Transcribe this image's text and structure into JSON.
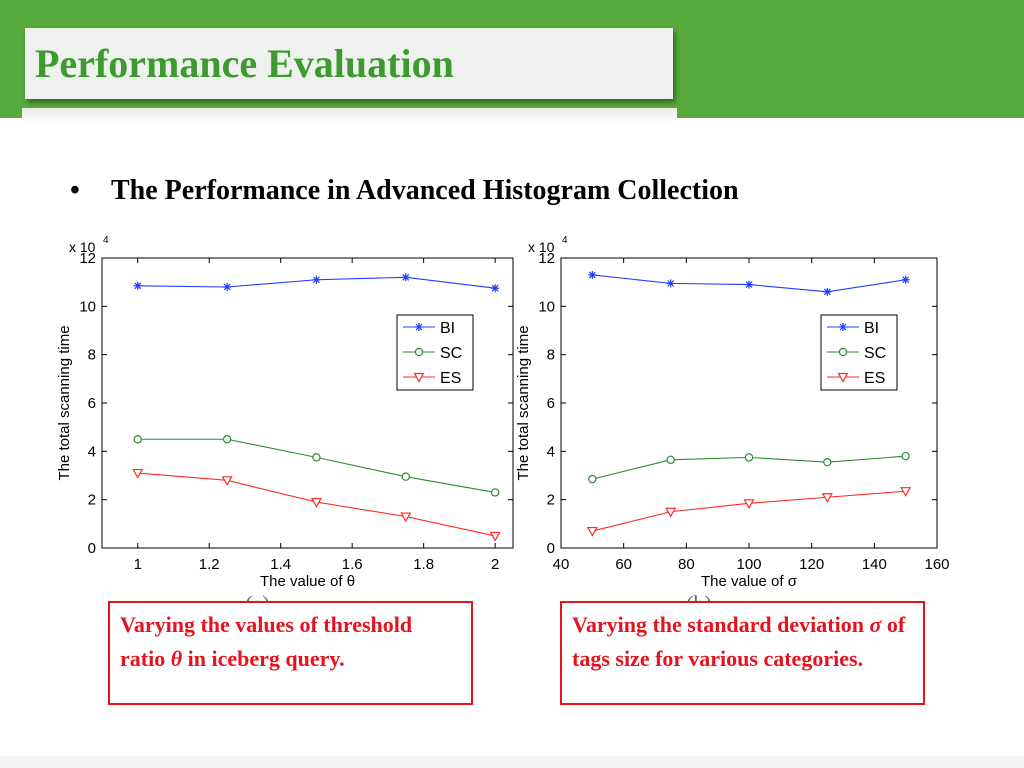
{
  "slide": {
    "title": "Performance Evaluation",
    "bullet_symbol": "•",
    "bullet_text": "The Performance in Advanced Histogram Collection",
    "colors": {
      "header_green": "#57aa3c",
      "title_green": "#3d9a2f",
      "caption_red": "#e8121e"
    }
  },
  "captions": [
    {
      "pre": "Varying the values of threshold ratio ",
      "symbol": "θ",
      "post": " in iceberg query."
    },
    {
      "pre": "Varying the standard deviation ",
      "symbol": "σ",
      "post": " of tags size for various categories."
    }
  ],
  "chart_data": [
    {
      "type": "line",
      "panel_label": "(a)",
      "xlabel": "The value of θ",
      "ylabel": "The total scanning time",
      "y_multiplier": "x 10",
      "y_multiplier_exp": "4",
      "xlim": [
        0.9,
        2.05
      ],
      "ylim": [
        0,
        12
      ],
      "x_ticks": [
        1,
        1.2,
        1.4,
        1.6,
        1.8,
        2
      ],
      "x_tick_labels": [
        "1",
        "1.2",
        "1.4",
        "1.6",
        "1.8",
        "2"
      ],
      "y_ticks": [
        0,
        2,
        4,
        6,
        8,
        10,
        12
      ],
      "y_tick_labels": [
        "0",
        "2",
        "4",
        "6",
        "8",
        "10",
        "12"
      ],
      "legend_position": "center-right",
      "x": [
        1,
        1.25,
        1.5,
        1.75,
        2
      ],
      "series": [
        {
          "name": "BI",
          "marker": "star",
          "color": "#1f3bff",
          "values": [
            10.85,
            10.8,
            11.1,
            11.2,
            10.75
          ]
        },
        {
          "name": "SC",
          "marker": "circle",
          "color": "#2e8b2e",
          "values": [
            4.5,
            4.5,
            3.75,
            2.95,
            2.3
          ]
        },
        {
          "name": "ES",
          "marker": "triangle-down",
          "color": "#ff2a2a",
          "values": [
            3.1,
            2.8,
            1.9,
            1.3,
            0.5
          ]
        }
      ]
    },
    {
      "type": "line",
      "panel_label": "(b)",
      "xlabel": "The value of σ",
      "ylabel": "The total scanning time",
      "y_multiplier": "x 10",
      "y_multiplier_exp": "4",
      "xlim": [
        40,
        160
      ],
      "ylim": [
        0,
        12
      ],
      "x_ticks": [
        40,
        60,
        80,
        100,
        120,
        140,
        160
      ],
      "x_tick_labels": [
        "40",
        "60",
        "80",
        "100",
        "120",
        "140",
        "160"
      ],
      "y_ticks": [
        0,
        2,
        4,
        6,
        8,
        10,
        12
      ],
      "y_tick_labels": [
        "0",
        "2",
        "4",
        "6",
        "8",
        "10",
        "12"
      ],
      "legend_position": "center-right",
      "x": [
        50,
        75,
        100,
        125,
        150
      ],
      "series": [
        {
          "name": "BI",
          "marker": "star",
          "color": "#1f3bff",
          "values": [
            11.3,
            10.95,
            10.9,
            10.6,
            11.1
          ]
        },
        {
          "name": "SC",
          "marker": "circle",
          "color": "#2e8b2e",
          "values": [
            2.85,
            3.65,
            3.75,
            3.55,
            3.8
          ]
        },
        {
          "name": "ES",
          "marker": "triangle-down",
          "color": "#ff2a2a",
          "values": [
            0.7,
            1.5,
            1.85,
            2.1,
            2.35
          ]
        }
      ]
    }
  ]
}
